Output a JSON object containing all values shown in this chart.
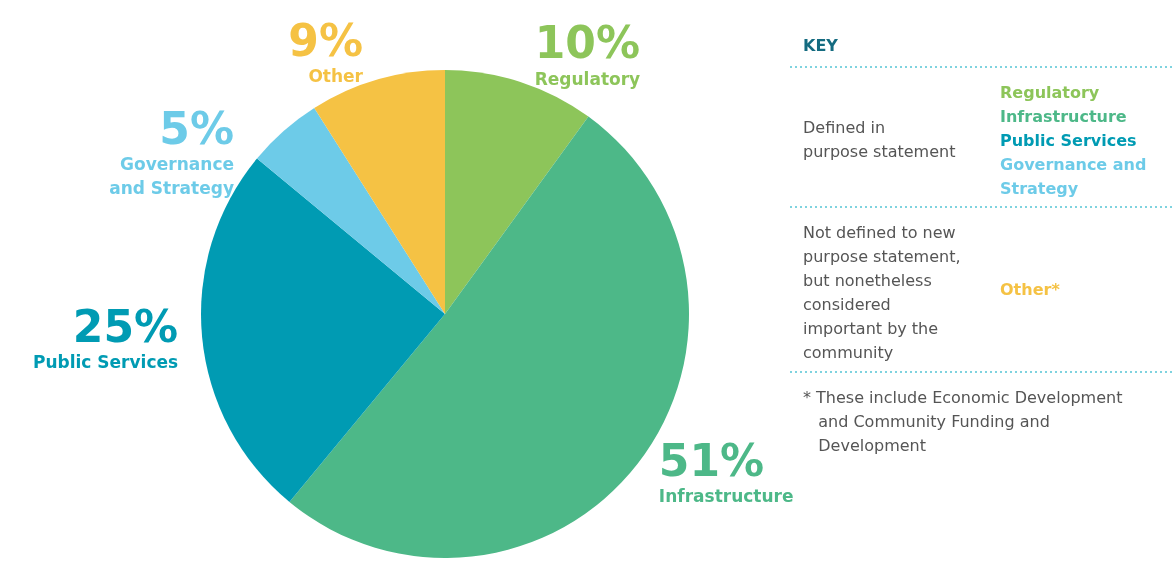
{
  "chart_data": {
    "type": "pie",
    "categories": [
      "Regulatory",
      "Infrastructure",
      "Public Services",
      "Governance and Strategy",
      "Other"
    ],
    "values": [
      10,
      51,
      25,
      5,
      9
    ],
    "value_labels": [
      "10%",
      "51%",
      "25%",
      "5%",
      "9%"
    ],
    "colors": [
      "#8dc55a",
      "#4db888",
      "#009bb3",
      "#6dcbe8",
      "#f5c244"
    ],
    "annotations": [
      "KEY",
      "Defined in\npurpose statement",
      "Not defined to new\npurpose statement,\nbut nonetheless\nconsidered\nimportant by the\ncommunity",
      "Other*",
      "* These include Economic Development\n   and Community Funding and\n   Development"
    ]
  }
}
